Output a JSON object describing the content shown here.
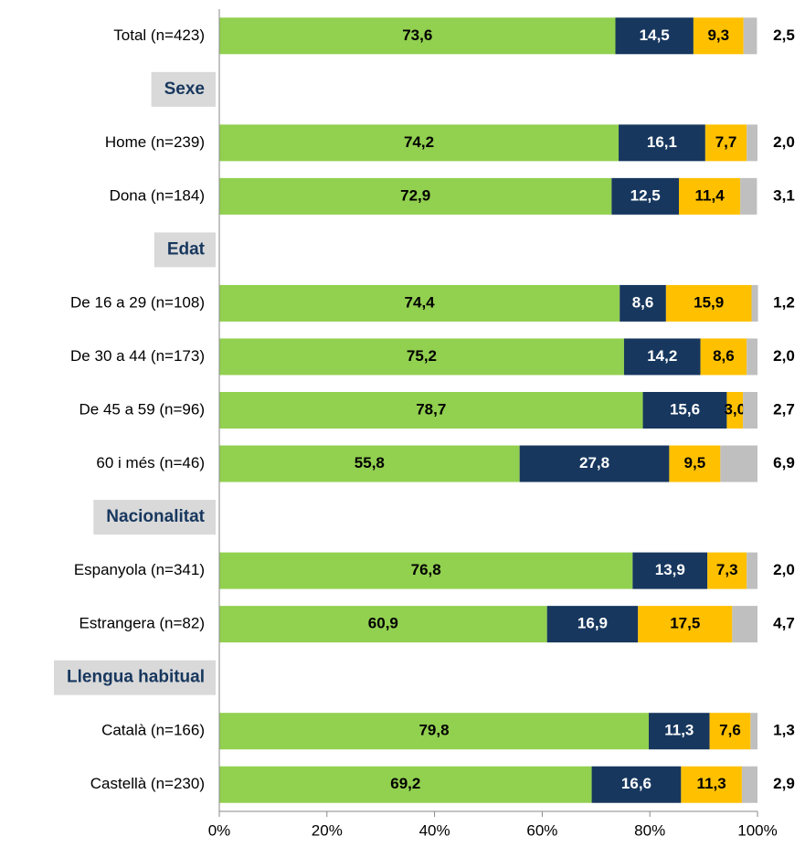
{
  "chart_data": {
    "type": "stacked-bar-horizontal",
    "categories": [
      "Total (n=423)",
      "Sexe",
      "Home (n=239)",
      "Dona (n=184)",
      "Edat",
      "De 16 a 29 (n=108)",
      "De 30 a 44 (n=173)",
      "De 45 a 59 (n=96)",
      "60 i més (n=46)",
      "Nacionalitat",
      "Espanyola (n=341)",
      "Estrangera (n=82)",
      "Llengua habitual",
      "Català (n=166)",
      "Castellà (n=230)"
    ],
    "series": [
      {
        "color": "#92D050",
        "values": [
          73.6,
          null,
          74.2,
          72.9,
          null,
          74.4,
          75.2,
          78.7,
          55.8,
          null,
          76.8,
          60.9,
          null,
          79.8,
          69.2
        ],
        "value_labels": [
          "73,6",
          null,
          "74,2",
          "72,9",
          null,
          "74,4",
          "75,2",
          "78,7",
          "55,8",
          null,
          "76,8",
          "60,9",
          null,
          "79,8",
          "69,2"
        ]
      },
      {
        "color": "#17375E",
        "values": [
          14.5,
          null,
          16.1,
          12.5,
          null,
          8.6,
          14.2,
          15.6,
          27.8,
          null,
          13.9,
          16.9,
          null,
          11.3,
          16.6
        ],
        "value_labels": [
          "14,5",
          null,
          "16,1",
          "12,5",
          null,
          "8,6",
          "14,2",
          "15,6",
          "27,8",
          null,
          "13,9",
          "16,9",
          null,
          "11,3",
          "16,6"
        ]
      },
      {
        "color": "#FFC000",
        "values": [
          9.3,
          null,
          7.7,
          11.4,
          null,
          15.9,
          8.6,
          3.0,
          9.5,
          null,
          7.3,
          17.5,
          null,
          7.6,
          11.3
        ],
        "value_labels": [
          "9,3",
          null,
          "7,7",
          "11,4",
          null,
          "15,9",
          "8,6",
          "3,0",
          "9,5",
          null,
          "7,3",
          "17,5",
          null,
          "7,6",
          "11,3"
        ]
      },
      {
        "color": "#BFBFBF",
        "values": [
          2.5,
          null,
          2.0,
          3.1,
          null,
          1.2,
          2.0,
          2.7,
          6.9,
          null,
          2.0,
          4.7,
          null,
          1.3,
          2.9
        ],
        "value_labels": [
          "2,5",
          null,
          "2,0",
          "3,1",
          null,
          "1,2",
          "2,0",
          "2,7",
          "6,9",
          null,
          "2,0",
          "4,7",
          null,
          "1,3",
          "2,9"
        ]
      }
    ],
    "xlim": [
      0,
      100
    ],
    "xticks": [
      {
        "value": 0,
        "label": "0%"
      },
      {
        "value": 20,
        "label": "20%"
      },
      {
        "value": 40,
        "label": "40%"
      },
      {
        "value": 60,
        "label": "60%"
      },
      {
        "value": 80,
        "label": "80%"
      },
      {
        "value": 100,
        "label": "100%"
      }
    ]
  }
}
